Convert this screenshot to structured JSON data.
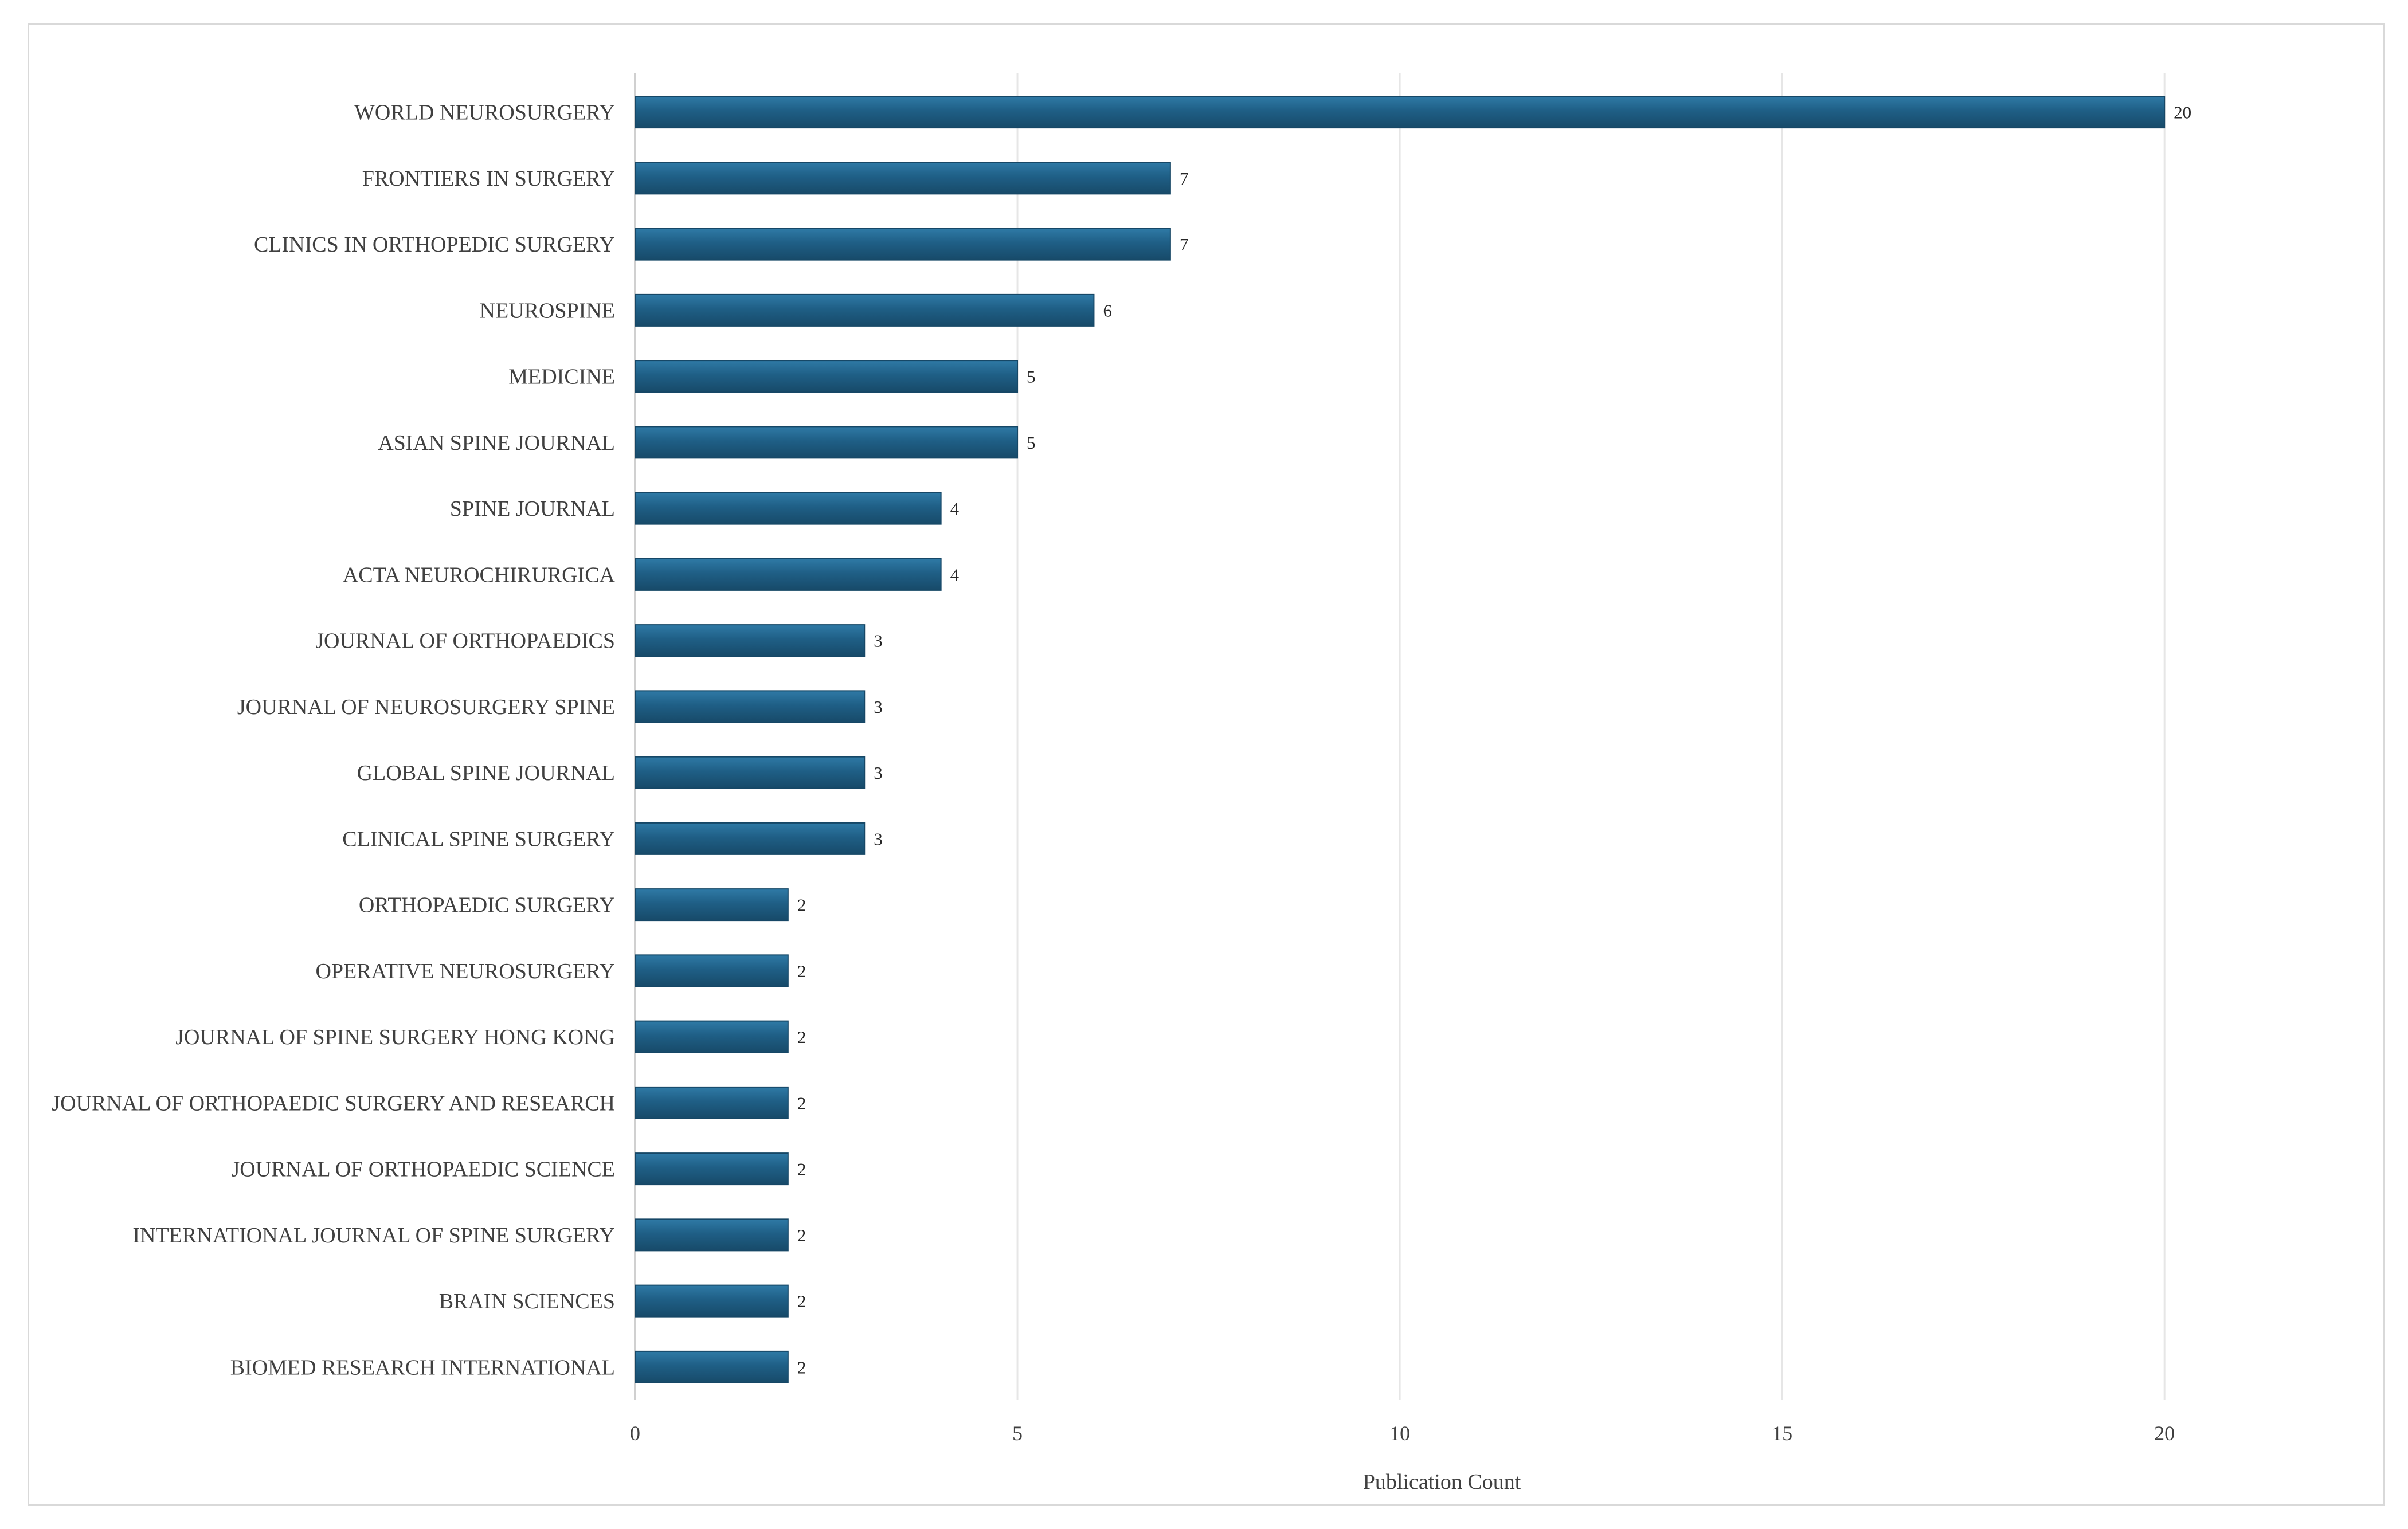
{
  "chart_data": {
    "type": "bar",
    "orientation": "horizontal",
    "categories": [
      "WORLD NEUROSURGERY",
      "FRONTIERS IN SURGERY",
      "CLINICS IN ORTHOPEDIC SURGERY",
      "NEUROSPINE",
      "MEDICINE",
      "ASIAN SPINE JOURNAL",
      "SPINE JOURNAL",
      "ACTA NEUROCHIRURGICA",
      "JOURNAL OF ORTHOPAEDICS",
      "JOURNAL OF NEUROSURGERY SPINE",
      "GLOBAL SPINE JOURNAL",
      "CLINICAL SPINE SURGERY",
      "ORTHOPAEDIC SURGERY",
      "OPERATIVE NEUROSURGERY",
      "JOURNAL OF SPINE SURGERY HONG KONG",
      "JOURNAL OF ORTHOPAEDIC SURGERY AND RESEARCH",
      "JOURNAL OF ORTHOPAEDIC SCIENCE",
      "INTERNATIONAL JOURNAL OF SPINE SURGERY",
      "BRAIN SCIENCES",
      "BIOMED RESEARCH INTERNATIONAL"
    ],
    "values": [
      20,
      7,
      7,
      6,
      5,
      5,
      4,
      4,
      3,
      3,
      3,
      3,
      2,
      2,
      2,
      2,
      2,
      2,
      2,
      2
    ],
    "xlabel": "Publication Count",
    "ylabel": "",
    "xlim": [
      0,
      22
    ],
    "xticks": [
      0,
      5,
      10,
      15,
      20
    ],
    "grid": "vertical",
    "legend": "none",
    "bar_color": "#1f5f86",
    "bar_color_light": "#2f7aa6",
    "grid_color": "#e6e6e6",
    "data_labels": true
  }
}
